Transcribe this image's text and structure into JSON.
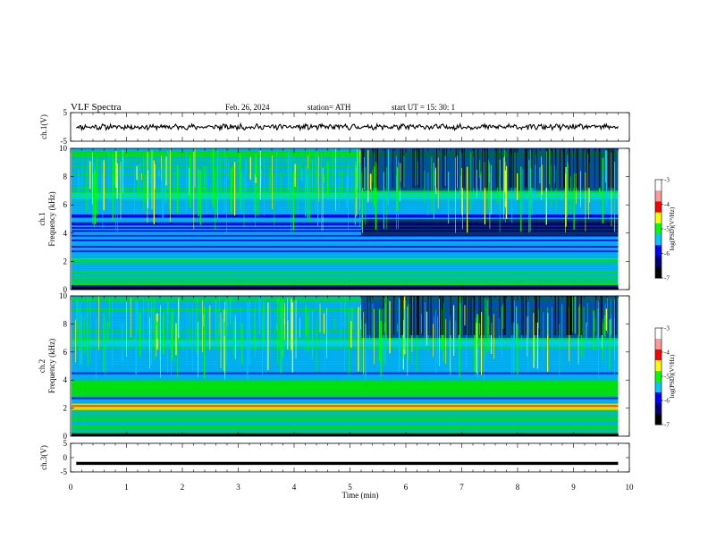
{
  "header": {
    "title": "VLF  Spectra",
    "date": "Feb. 26, 2024",
    "station": "station= ATH",
    "start_ut": "start  UT  =    15: 30: 1"
  },
  "chart_data": {
    "type": "heatmap",
    "xlabel": "Time  (min)",
    "xlim": [
      0,
      10
    ],
    "xticks": [
      "0",
      "1",
      "2",
      "3",
      "4",
      "5",
      "6",
      "7",
      "8",
      "9",
      "10"
    ],
    "panels": [
      {
        "id": "ch1-waveform",
        "type": "line",
        "ylabel": "ch.1(V)",
        "ylim": [
          -5,
          5
        ],
        "yticks": [
          "5",
          "-5"
        ],
        "baseline": 0
      },
      {
        "id": "ch1-spectrogram",
        "type": "heatmap",
        "ylabel": "ch.1\nFrequency  (kHz)",
        "ylim": [
          0,
          10
        ],
        "yticks": [
          "0",
          "2",
          "4",
          "6",
          "8",
          "10"
        ],
        "colorbar": {
          "label": "log(PSD)(V²/Hz)",
          "range": [
            -7,
            -3
          ],
          "ticks": [
            "-3",
            "-4",
            "-5",
            "-6",
            "-7"
          ]
        }
      },
      {
        "id": "ch2-spectrogram",
        "type": "heatmap",
        "ylabel": "ch.2\nFrequency  (kHz)",
        "ylim": [
          0,
          10
        ],
        "yticks": [
          "0",
          "2",
          "4",
          "6",
          "8",
          "10"
        ],
        "colorbar": {
          "label": "log(PSD)(V²/Hz)",
          "range": [
            -7,
            -3
          ],
          "ticks": [
            "-3",
            "-4",
            "-5",
            "-6",
            "-7"
          ]
        }
      },
      {
        "id": "ch3-waveform",
        "type": "line",
        "ylabel": "ch.3(V)",
        "ylim": [
          -5,
          5
        ],
        "yticks": [
          "5",
          "0",
          "-5"
        ],
        "baseline": -2
      }
    ],
    "data_end_min": 9.8,
    "colors": {
      "navy": "#00007a",
      "blue": "#0000ff",
      "cyan": "#00c8ff",
      "green": "#00ff00",
      "yellow": "#ffff00",
      "red": "#ff0000",
      "magenta": "#ff00ff"
    }
  }
}
